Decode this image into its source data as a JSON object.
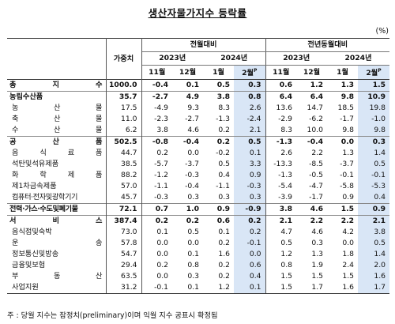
{
  "title": "생산자물가지수 등락률",
  "unit": "(%)",
  "header": {
    "weight": "가중치",
    "group_mom": "전월대비",
    "group_yoy": "전년동월대비",
    "year_2023": "2023년",
    "year_2024": "2024년",
    "months": [
      "11월",
      "12월",
      "1월",
      "2월"
    ],
    "prelim_mark": "P"
  },
  "rows": [
    {
      "label": "총 지 수",
      "weight": "1000.0",
      "values": [
        "-0.4",
        "0.1",
        "0.5",
        "0.3",
        "0.6",
        "1.2",
        "1.3",
        "1.5"
      ],
      "style": "bold"
    },
    {
      "label": "농림수산품",
      "weight": "35.7",
      "values": [
        "-2.7",
        "4.9",
        "3.8",
        "0.8",
        "6.4",
        "6.4",
        "9.8",
        "10.9"
      ],
      "style": "bold"
    },
    {
      "label": "농 산 물",
      "weight": "17.5",
      "values": [
        "-4.9",
        "9.3",
        "8.3",
        "2.6",
        "13.6",
        "14.7",
        "18.5",
        "19.8"
      ],
      "style": "sub"
    },
    {
      "label": "축 산 물",
      "weight": "11.0",
      "values": [
        "-2.3",
        "-2.7",
        "-1.3",
        "-2.4",
        "-2.9",
        "-6.2",
        "-1.7",
        "-1.0"
      ],
      "style": "sub"
    },
    {
      "label": "수 산 물",
      "weight": "6.2",
      "values": [
        "3.8",
        "4.6",
        "0.2",
        "2.1",
        "8.3",
        "10.0",
        "9.8",
        "9.8"
      ],
      "style": "sub"
    },
    {
      "label": "공 산 품",
      "weight": "502.5",
      "values": [
        "-0.8",
        "-0.4",
        "0.2",
        "0.5",
        "-1.3",
        "-0.4",
        "0.0",
        "0.3"
      ],
      "style": "bold"
    },
    {
      "label": "음 식 료 품",
      "weight": "44.7",
      "values": [
        "0.2",
        "0.0",
        "-0.2",
        "0.1",
        "2.6",
        "2.2",
        "1.3",
        "1.4"
      ],
      "style": "sub"
    },
    {
      "label": "석탄및석유제품",
      "weight": "38.5",
      "values": [
        "-5.7",
        "-3.7",
        "0.5",
        "3.3",
        "-13.3",
        "-8.5",
        "-3.7",
        "0.5"
      ],
      "style": "sub"
    },
    {
      "label": "화 학 제 품",
      "weight": "88.2",
      "values": [
        "-1.2",
        "-0.3",
        "0.4",
        "0.9",
        "-1.3",
        "-0.5",
        "-0.1",
        "-0.1"
      ],
      "style": "sub"
    },
    {
      "label": "제1차금속제품",
      "weight": "57.0",
      "values": [
        "-1.1",
        "-0.4",
        "-1.1",
        "-0.3",
        "-5.4",
        "-4.7",
        "-5.8",
        "-5.3"
      ],
      "style": "sub"
    },
    {
      "label": "컴퓨터·전자및광학기기",
      "weight": "45.7",
      "values": [
        "-0.3",
        "0.3",
        "0.3",
        "0.3",
        "-3.9",
        "-1.7",
        "0.9",
        "0.4"
      ],
      "style": "sub"
    },
    {
      "label": "전력·가스·수도및폐기물",
      "weight": "72.1",
      "values": [
        "0.7",
        "1.0",
        "0.9",
        "-0.9",
        "3.8",
        "4.6",
        "1.5",
        "0.9"
      ],
      "style": "bold"
    },
    {
      "label": "서 비 스",
      "weight": "387.4",
      "values": [
        "0.2",
        "0.2",
        "0.6",
        "0.2",
        "2.1",
        "2.2",
        "2.2",
        "2.1"
      ],
      "style": "bold"
    },
    {
      "label": "음식점및숙박",
      "weight": "73.0",
      "values": [
        "0.1",
        "0.5",
        "0.1",
        "0.2",
        "4.7",
        "4.6",
        "4.2",
        "3.8"
      ],
      "style": "sub"
    },
    {
      "label": "운 송",
      "weight": "57.8",
      "values": [
        "0.0",
        "0.0",
        "0.2",
        "-0.1",
        "0.5",
        "0.3",
        "0.0",
        "0.5"
      ],
      "style": "sub"
    },
    {
      "label": "정보통신및방송",
      "weight": "54.7",
      "values": [
        "0.0",
        "0.1",
        "1.6",
        "0.0",
        "1.2",
        "1.3",
        "1.8",
        "1.4"
      ],
      "style": "sub"
    },
    {
      "label": "금융및보험",
      "weight": "29.4",
      "values": [
        "0.2",
        "0.8",
        "0.2",
        "0.6",
        "0.8",
        "1.9",
        "2.4",
        "2.0"
      ],
      "style": "sub"
    },
    {
      "label": "부 동 산",
      "weight": "63.5",
      "values": [
        "0.0",
        "0.3",
        "0.2",
        "0.4",
        "1.5",
        "1.5",
        "1.5",
        "1.6"
      ],
      "style": "sub"
    },
    {
      "label": "사업지원",
      "weight": "31.2",
      "values": [
        "-0.1",
        "0.1",
        "1.2",
        "0.1",
        "1.5",
        "1.7",
        "1.6",
        "1.7"
      ],
      "style": "sub"
    }
  ],
  "footnote": "주 : 당월 지수는 잠정치(preliminary)이며 익월 지수 공표시 확정됨"
}
